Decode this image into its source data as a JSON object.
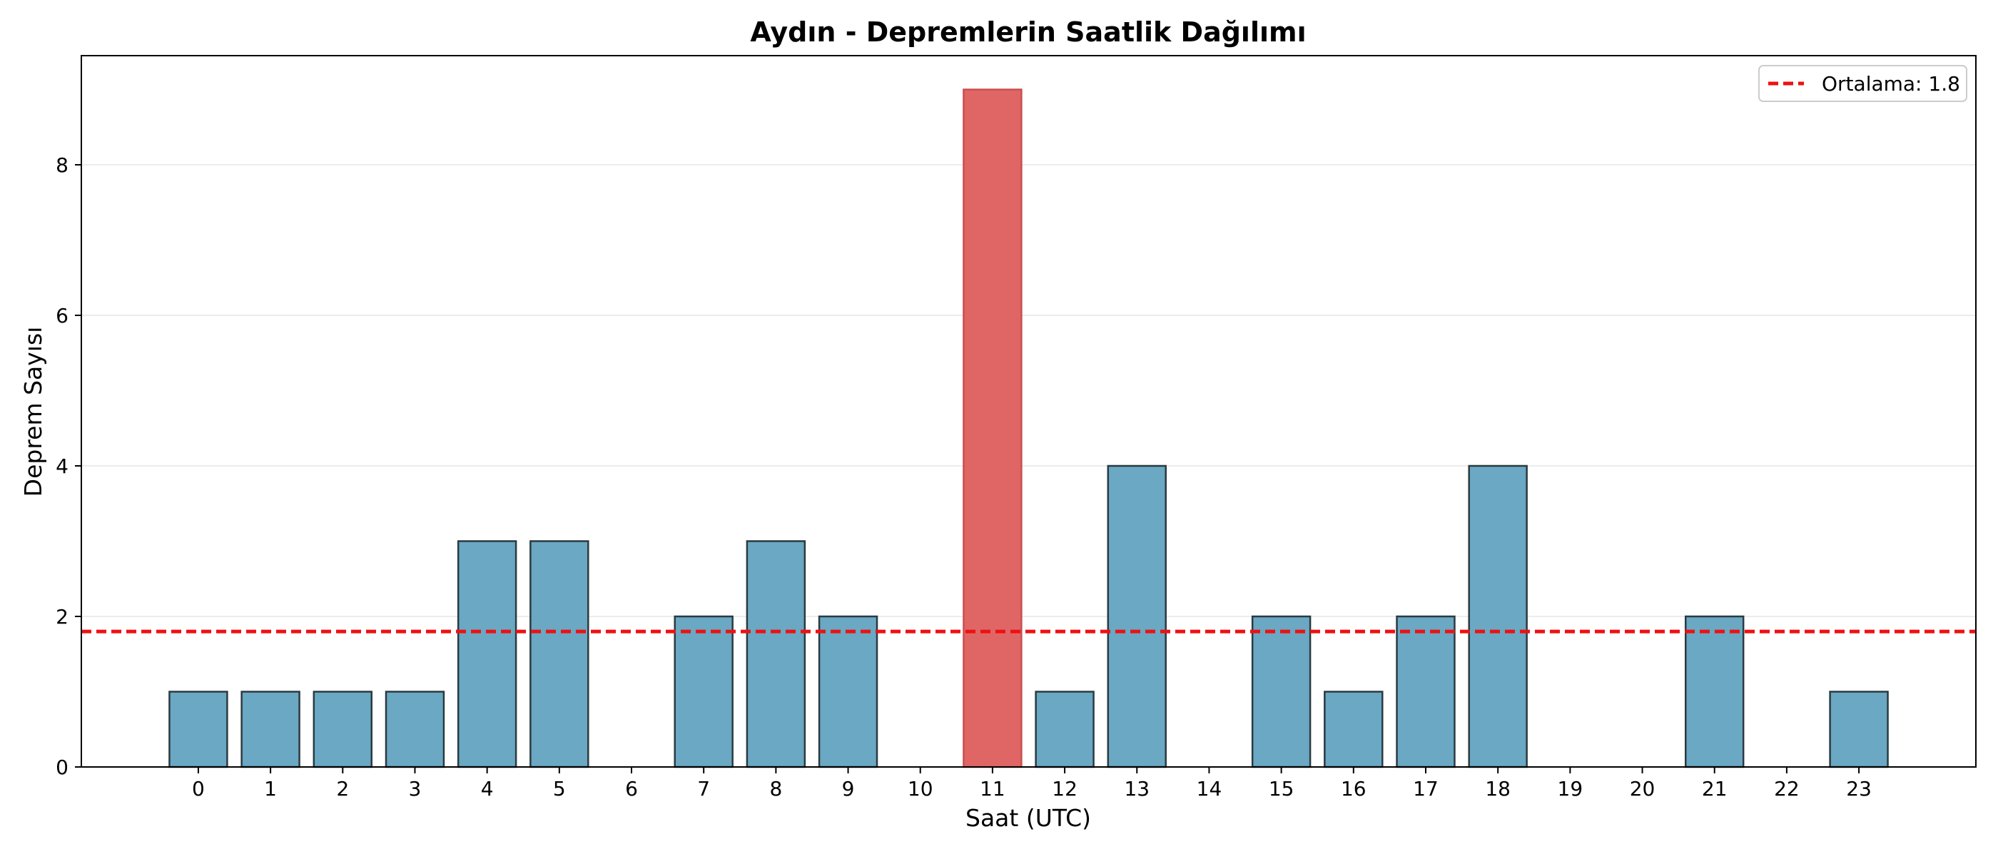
{
  "chart_data": {
    "type": "bar",
    "title": "Aydın - Depremlerin Saatlik Dağılımı",
    "xlabel": "Saat (UTC)",
    "ylabel": "Deprem Sayısı",
    "categories": [
      "0",
      "1",
      "2",
      "3",
      "4",
      "5",
      "6",
      "7",
      "8",
      "9",
      "10",
      "11",
      "12",
      "13",
      "14",
      "15",
      "16",
      "17",
      "18",
      "19",
      "20",
      "21",
      "22",
      "23"
    ],
    "values": [
      1,
      1,
      1,
      1,
      3,
      3,
      0,
      2,
      3,
      2,
      0,
      9,
      1,
      4,
      0,
      2,
      1,
      2,
      4,
      0,
      0,
      2,
      0,
      1
    ],
    "highlight_index": 11,
    "ylim": [
      0,
      9.45
    ],
    "yticks": [
      0,
      2,
      4,
      6,
      8
    ],
    "grid": "horizontal",
    "mean_line": {
      "value": 1.8,
      "label": "Ortalama: 1.8"
    },
    "legend_placement": "top-right",
    "colors": {
      "bar": "#6aa8c4",
      "bar_edge": "#2b3a40",
      "highlight": "#e06666",
      "highlight_edge": "#c94f4f",
      "mean_line": "#ee1111",
      "grid": "#e6e6e6"
    }
  }
}
